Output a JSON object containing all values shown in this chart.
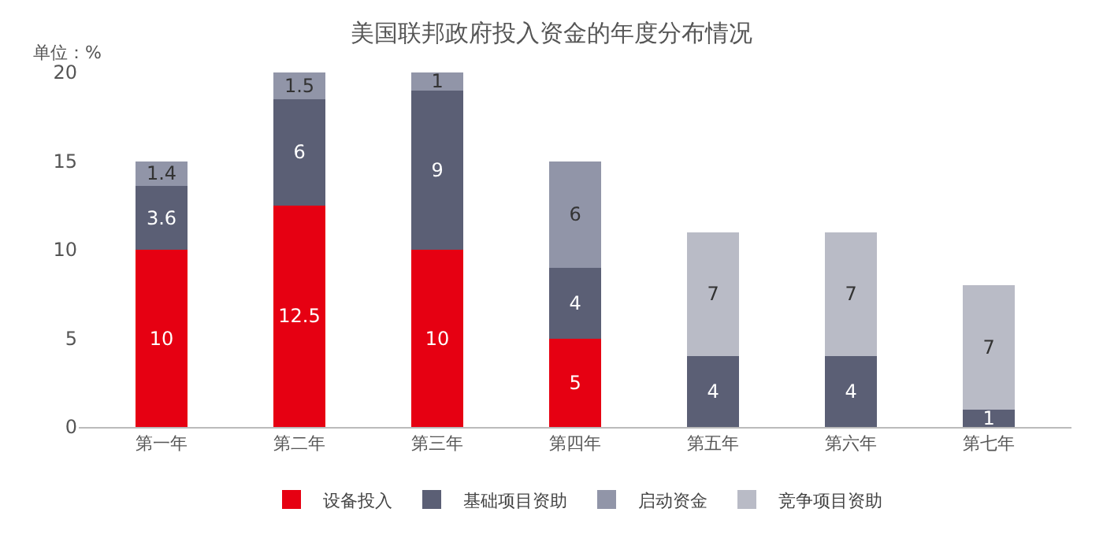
{
  "chart_data": {
    "type": "bar",
    "title": "美国联邦政府投入资金的年度分布情况",
    "ylabel": "单位：%",
    "categories": [
      "第一年",
      "第二年",
      "第三年",
      "第四年",
      "第五年",
      "第六年",
      "第七年"
    ],
    "series": [
      {
        "name": "设备投入",
        "color": "#e60012",
        "values": [
          10,
          12.5,
          10,
          5,
          null,
          null,
          null
        ]
      },
      {
        "name": "基础项目资助",
        "color": "#5b5f75",
        "values": [
          3.6,
          6,
          9,
          4,
          4,
          4,
          1
        ]
      },
      {
        "name": "启动资金",
        "color": "#9195a8",
        "values": [
          1.4,
          1.5,
          1,
          6,
          null,
          null,
          null
        ]
      },
      {
        "name": "竞争项目资助",
        "color": "#b9bbc6",
        "values": [
          null,
          null,
          null,
          null,
          7,
          7,
          7
        ]
      }
    ],
    "stacked": true,
    "data_labels": true,
    "ylim": [
      0,
      20
    ],
    "yticks": [
      0,
      5,
      10,
      15,
      20
    ],
    "grid": false,
    "legend": "bottom"
  }
}
